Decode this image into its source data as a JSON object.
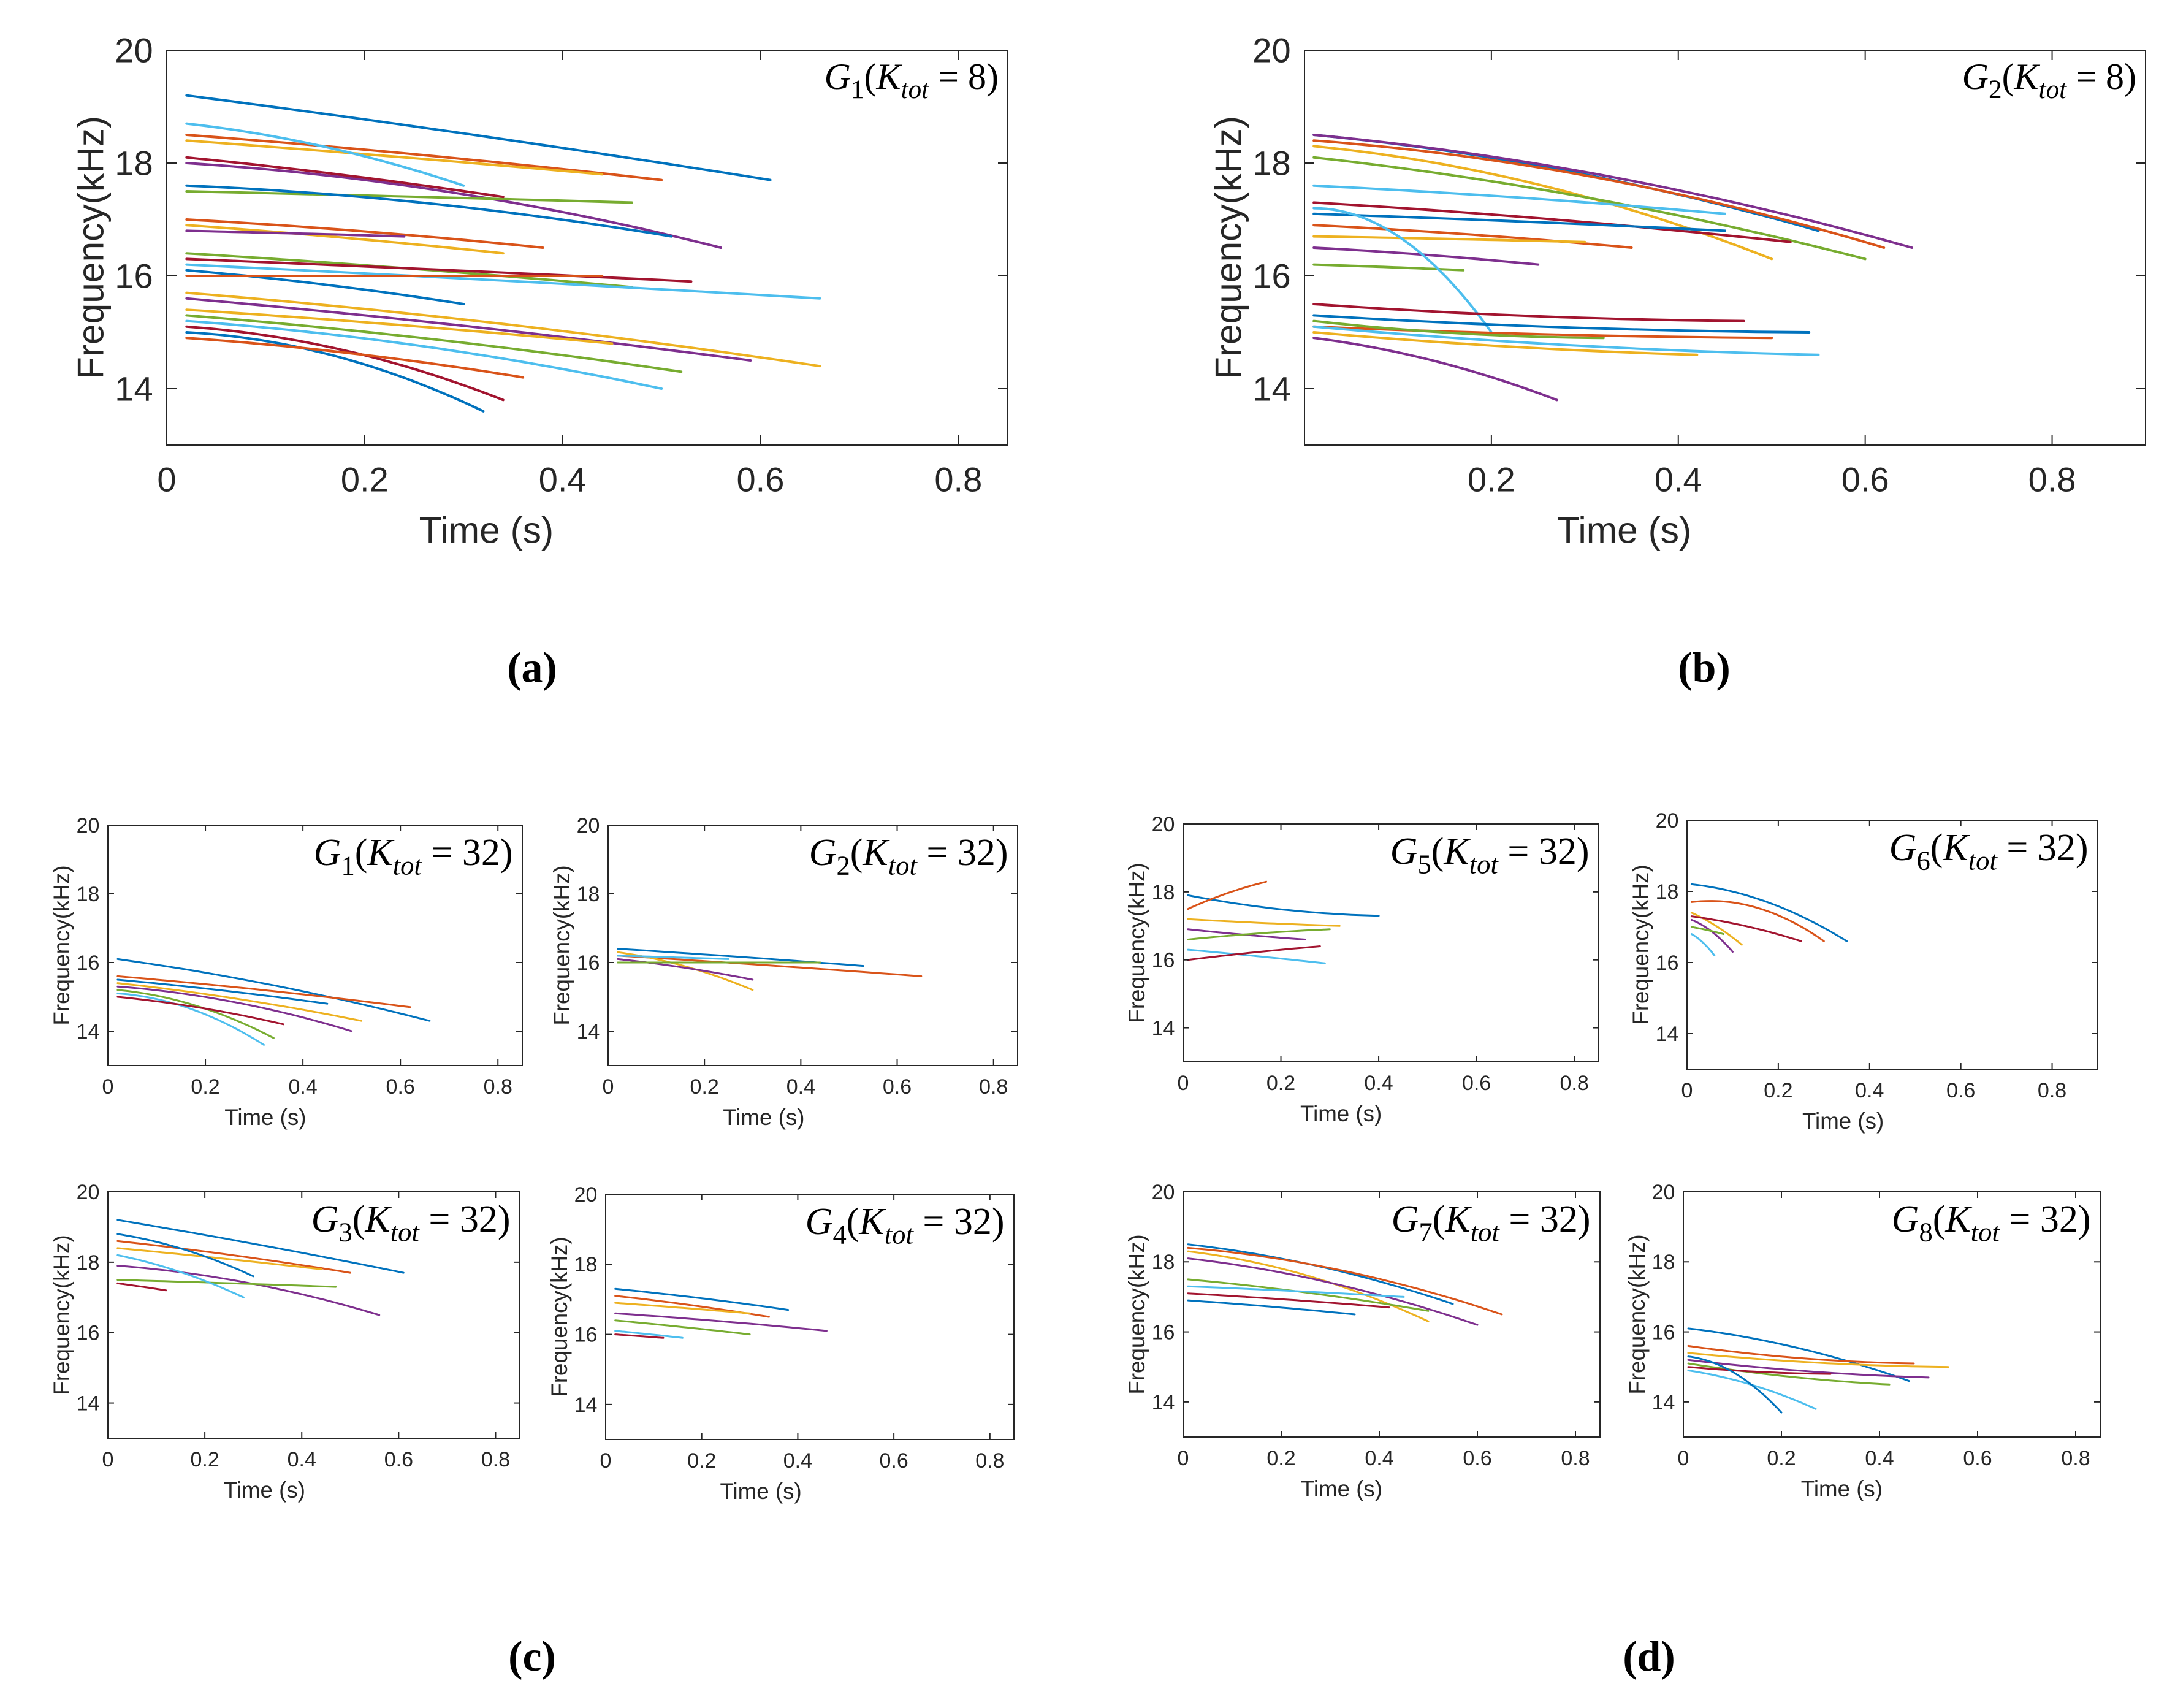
{
  "figure": {
    "panel_labels": [
      "(a)",
      "(b)",
      "(c)",
      "(d)"
    ],
    "line_colors": [
      "#0072BD",
      "#D95319",
      "#EDB120",
      "#7E2F8E",
      "#77AC30",
      "#4DBEEE",
      "#A2142F"
    ]
  },
  "chart_data": [
    {
      "id": "a",
      "type": "line",
      "title": "G1(Ktot = 8)",
      "xlabel": "Time (s)",
      "ylabel": "Frequency(kHz)",
      "xlim": [
        0,
        0.85
      ],
      "ylim": [
        13,
        20
      ],
      "xticks": [
        0,
        0.2,
        0.4,
        0.6,
        0.8
      ],
      "xtick_labels": [
        "0",
        "0.2",
        "0.4",
        "0.6",
        "0.8"
      ],
      "yticks": [
        14,
        16,
        18,
        20
      ],
      "ytick_labels": [
        "14",
        "16",
        "18",
        "20"
      ],
      "series": [
        {
          "t0": 0.02,
          "f0": 19.2,
          "t1": 0.61,
          "f1": 17.7,
          "bend": 0.1
        },
        {
          "t0": 0.02,
          "f0": 18.5,
          "t1": 0.5,
          "f1": 17.7,
          "bend": 0.2
        },
        {
          "t0": 0.02,
          "f0": 18.4,
          "t1": 0.44,
          "f1": 17.8,
          "bend": 0.1
        },
        {
          "t0": 0.02,
          "f0": 18.0,
          "t1": 0.56,
          "f1": 16.5,
          "bend": 0.6
        },
        {
          "t0": 0.02,
          "f0": 17.5,
          "t1": 0.47,
          "f1": 17.3,
          "bend": 0.1
        },
        {
          "t0": 0.02,
          "f0": 18.7,
          "t1": 0.3,
          "f1": 17.6,
          "bend": 0.5
        },
        {
          "t0": 0.02,
          "f0": 18.1,
          "t1": 0.34,
          "f1": 17.4,
          "bend": 0.2
        },
        {
          "t0": 0.02,
          "f0": 17.6,
          "t1": 0.51,
          "f1": 16.7,
          "bend": 0.6
        },
        {
          "t0": 0.02,
          "f0": 17.0,
          "t1": 0.38,
          "f1": 16.5,
          "bend": 0.3
        },
        {
          "t0": 0.02,
          "f0": 16.9,
          "t1": 0.34,
          "f1": 16.4,
          "bend": 0.2
        },
        {
          "t0": 0.02,
          "f0": 16.8,
          "t1": 0.24,
          "f1": 16.7,
          "bend": 0.1
        },
        {
          "t0": 0.02,
          "f0": 16.4,
          "t1": 0.47,
          "f1": 15.8,
          "bend": 0.2
        },
        {
          "t0": 0.02,
          "f0": 16.2,
          "t1": 0.66,
          "f1": 15.6,
          "bend": 0.1
        },
        {
          "t0": 0.02,
          "f0": 16.3,
          "t1": 0.53,
          "f1": 15.9,
          "bend": 0.1
        },
        {
          "t0": 0.02,
          "f0": 16.1,
          "t1": 0.3,
          "f1": 15.5,
          "bend": 0.3
        },
        {
          "t0": 0.02,
          "f0": 16.0,
          "t1": 0.44,
          "f1": 16.0,
          "bend": 0.0
        },
        {
          "t0": 0.02,
          "f0": 15.7,
          "t1": 0.66,
          "f1": 14.4,
          "bend": 0.3
        },
        {
          "t0": 0.02,
          "f0": 15.6,
          "t1": 0.59,
          "f1": 14.5,
          "bend": 0.2
        },
        {
          "t0": 0.02,
          "f0": 15.3,
          "t1": 0.52,
          "f1": 14.3,
          "bend": 0.3
        },
        {
          "t0": 0.02,
          "f0": 15.2,
          "t1": 0.5,
          "f1": 14.0,
          "bend": 0.5
        },
        {
          "t0": 0.02,
          "f0": 15.1,
          "t1": 0.34,
          "f1": 13.8,
          "bend": 0.7
        },
        {
          "t0": 0.02,
          "f0": 15.0,
          "t1": 0.32,
          "f1": 13.6,
          "bend": 0.8
        },
        {
          "t0": 0.02,
          "f0": 14.9,
          "t1": 0.36,
          "f1": 14.2,
          "bend": 0.4
        },
        {
          "t0": 0.02,
          "f0": 15.4,
          "t1": 0.45,
          "f1": 14.8,
          "bend": 0.2
        }
      ]
    },
    {
      "id": "b",
      "type": "line",
      "title": "G2(Ktot = 8)",
      "xlabel": "Time (s)",
      "ylabel": "Frequency(kHz)",
      "xlim": [
        0,
        0.9
      ],
      "ylim": [
        13,
        20
      ],
      "xticks": [
        0.2,
        0.4,
        0.6,
        0.8
      ],
      "xtick_labels": [
        "0.2",
        "0.4",
        "0.6",
        "0.8"
      ],
      "yticks": [
        14,
        16,
        18,
        20
      ],
      "ytick_labels": [
        "14",
        "16",
        "18",
        "20"
      ],
      "series": [
        {
          "t0": 0.01,
          "f0": 18.5,
          "t1": 0.55,
          "f1": 16.8,
          "bend": 0.5
        },
        {
          "t0": 0.01,
          "f0": 18.4,
          "t1": 0.62,
          "f1": 16.5,
          "bend": 0.6
        },
        {
          "t0": 0.01,
          "f0": 18.3,
          "t1": 0.5,
          "f1": 16.3,
          "bend": 0.6
        },
        {
          "t0": 0.01,
          "f0": 18.5,
          "t1": 0.65,
          "f1": 16.5,
          "bend": 0.5
        },
        {
          "t0": 0.01,
          "f0": 18.1,
          "t1": 0.6,
          "f1": 16.3,
          "bend": 0.4
        },
        {
          "t0": 0.01,
          "f0": 17.6,
          "t1": 0.45,
          "f1": 17.1,
          "bend": 0.3
        },
        {
          "t0": 0.01,
          "f0": 17.3,
          "t1": 0.52,
          "f1": 16.6,
          "bend": 0.3
        },
        {
          "t0": 0.01,
          "f0": 17.1,
          "t1": 0.45,
          "f1": 16.8,
          "bend": 0.2
        },
        {
          "t0": 0.01,
          "f0": 16.9,
          "t1": 0.35,
          "f1": 16.5,
          "bend": 0.3
        },
        {
          "t0": 0.01,
          "f0": 16.7,
          "t1": 0.3,
          "f1": 16.6,
          "bend": 0.2
        },
        {
          "t0": 0.01,
          "f0": 16.5,
          "t1": 0.25,
          "f1": 16.2,
          "bend": 0.3
        },
        {
          "t0": 0.01,
          "f0": 16.2,
          "t1": 0.17,
          "f1": 16.1,
          "bend": 0.2
        },
        {
          "t0": 0.01,
          "f0": 17.2,
          "t1": 0.2,
          "f1": 15.0,
          "bend": 1.0
        },
        {
          "t0": 0.01,
          "f0": 15.5,
          "t1": 0.47,
          "f1": 15.2,
          "bend": -0.8
        },
        {
          "t0": 0.01,
          "f0": 15.3,
          "t1": 0.54,
          "f1": 15.0,
          "bend": -0.8
        },
        {
          "t0": 0.01,
          "f0": 15.1,
          "t1": 0.5,
          "f1": 14.9,
          "bend": -0.7
        },
        {
          "t0": 0.01,
          "f0": 15.0,
          "t1": 0.42,
          "f1": 14.6,
          "bend": -0.5
        },
        {
          "t0": 0.01,
          "f0": 14.9,
          "t1": 0.27,
          "f1": 13.8,
          "bend": 0.5
        },
        {
          "t0": 0.01,
          "f0": 15.2,
          "t1": 0.32,
          "f1": 14.9,
          "bend": -0.9
        },
        {
          "t0": 0.01,
          "f0": 15.1,
          "t1": 0.55,
          "f1": 14.6,
          "bend": -0.6
        }
      ]
    },
    {
      "id": "c1",
      "type": "line",
      "title": "G1(Ktot = 32)",
      "xlabel": "Time (s)",
      "ylabel": "Frequency(kHz)",
      "xlim": [
        0,
        0.85
      ],
      "ylim": [
        13,
        20
      ],
      "xticks": [
        0,
        0.2,
        0.4,
        0.6,
        0.8
      ],
      "xtick_labels": [
        "0",
        "0.2",
        "0.4",
        "0.6",
        "0.8"
      ],
      "yticks": [
        14,
        16,
        18,
        20
      ],
      "ytick_labels": [
        "14",
        "16",
        "18",
        "20"
      ],
      "series": [
        {
          "t0": 0.02,
          "f0": 16.1,
          "t1": 0.66,
          "f1": 14.3,
          "bend": 0.3
        },
        {
          "t0": 0.02,
          "f0": 15.6,
          "t1": 0.62,
          "f1": 14.7,
          "bend": 0.2
        },
        {
          "t0": 0.02,
          "f0": 15.4,
          "t1": 0.52,
          "f1": 14.3,
          "bend": 0.3
        },
        {
          "t0": 0.02,
          "f0": 15.3,
          "t1": 0.5,
          "f1": 14.0,
          "bend": 0.6
        },
        {
          "t0": 0.02,
          "f0": 15.2,
          "t1": 0.34,
          "f1": 13.8,
          "bend": 0.7
        },
        {
          "t0": 0.02,
          "f0": 15.1,
          "t1": 0.32,
          "f1": 13.6,
          "bend": 0.8
        },
        {
          "t0": 0.02,
          "f0": 15.0,
          "t1": 0.36,
          "f1": 14.2,
          "bend": 0.4
        },
        {
          "t0": 0.02,
          "f0": 15.5,
          "t1": 0.45,
          "f1": 14.8,
          "bend": 0.2
        }
      ]
    },
    {
      "id": "c2",
      "type": "line",
      "title": "G2(Ktot = 32)",
      "xlabel": "Time (s)",
      "ylabel": "Frequency(kHz)",
      "xlim": [
        0,
        0.85
      ],
      "ylim": [
        13,
        20
      ],
      "xticks": [
        0,
        0.2,
        0.4,
        0.6,
        0.8
      ],
      "xtick_labels": [
        "0",
        "0.2",
        "0.4",
        "0.6",
        "0.8"
      ],
      "yticks": [
        14,
        16,
        18,
        20
      ],
      "ytick_labels": [
        "14",
        "16",
        "18",
        "20"
      ],
      "series": [
        {
          "t0": 0.02,
          "f0": 16.4,
          "t1": 0.53,
          "f1": 15.9,
          "bend": 0.1
        },
        {
          "t0": 0.02,
          "f0": 16.2,
          "t1": 0.65,
          "f1": 15.6,
          "bend": 0.1
        },
        {
          "t0": 0.02,
          "f0": 16.3,
          "t1": 0.3,
          "f1": 15.2,
          "bend": 0.5
        },
        {
          "t0": 0.02,
          "f0": 16.1,
          "t1": 0.3,
          "f1": 15.5,
          "bend": 0.3
        },
        {
          "t0": 0.02,
          "f0": 16.0,
          "t1": 0.44,
          "f1": 16.0,
          "bend": 0.0
        },
        {
          "t0": 0.02,
          "f0": 16.2,
          "t1": 0.25,
          "f1": 16.1,
          "bend": 0.1
        }
      ]
    },
    {
      "id": "c3",
      "type": "line",
      "title": "G3(Ktot = 32)",
      "xlabel": "Time (s)",
      "ylabel": "Frequency(kHz)",
      "xlim": [
        0,
        0.85
      ],
      "ylim": [
        13,
        20
      ],
      "xticks": [
        0,
        0.2,
        0.4,
        0.6,
        0.8
      ],
      "xtick_labels": [
        "0",
        "0.2",
        "0.4",
        "0.6",
        "0.8"
      ],
      "yticks": [
        14,
        16,
        18,
        20
      ],
      "ytick_labels": [
        "14",
        "16",
        "18",
        "20"
      ],
      "series": [
        {
          "t0": 0.02,
          "f0": 19.2,
          "t1": 0.61,
          "f1": 17.7,
          "bend": 0.1
        },
        {
          "t0": 0.02,
          "f0": 18.6,
          "t1": 0.5,
          "f1": 17.7,
          "bend": 0.2
        },
        {
          "t0": 0.02,
          "f0": 18.4,
          "t1": 0.44,
          "f1": 17.8,
          "bend": 0.1
        },
        {
          "t0": 0.02,
          "f0": 17.9,
          "t1": 0.56,
          "f1": 16.5,
          "bend": 0.6
        },
        {
          "t0": 0.02,
          "f0": 17.5,
          "t1": 0.47,
          "f1": 17.3,
          "bend": 0.1
        },
        {
          "t0": 0.02,
          "f0": 18.2,
          "t1": 0.28,
          "f1": 17.0,
          "bend": 0.4
        },
        {
          "t0": 0.02,
          "f0": 17.4,
          "t1": 0.12,
          "f1": 17.2,
          "bend": 0.1
        },
        {
          "t0": 0.02,
          "f0": 18.8,
          "t1": 0.3,
          "f1": 17.6,
          "bend": 0.5
        }
      ]
    },
    {
      "id": "c4",
      "type": "line",
      "title": "G4(Ktot = 32)",
      "xlabel": "Time (s)",
      "ylabel": "Frequency(kHz)",
      "xlim": [
        0,
        0.85
      ],
      "ylim": [
        13,
        20
      ],
      "xticks": [
        0,
        0.2,
        0.4,
        0.6,
        0.8
      ],
      "xtick_labels": [
        "0",
        "0.2",
        "0.4",
        "0.6",
        "0.8"
      ],
      "yticks": [
        14,
        16,
        18,
        20
      ],
      "ytick_labels": [
        "14",
        "16",
        "18",
        "20"
      ],
      "series": [
        {
          "t0": 0.02,
          "f0": 17.3,
          "t1": 0.38,
          "f1": 16.7,
          "bend": 0.2
        },
        {
          "t0": 0.02,
          "f0": 17.1,
          "t1": 0.34,
          "f1": 16.5,
          "bend": 0.2
        },
        {
          "t0": 0.02,
          "f0": 16.9,
          "t1": 0.3,
          "f1": 16.6,
          "bend": 0.1
        },
        {
          "t0": 0.02,
          "f0": 16.6,
          "t1": 0.46,
          "f1": 16.1,
          "bend": 0.2
        },
        {
          "t0": 0.02,
          "f0": 16.4,
          "t1": 0.3,
          "f1": 16.0,
          "bend": 0.1
        },
        {
          "t0": 0.02,
          "f0": 16.1,
          "t1": 0.16,
          "f1": 15.9,
          "bend": 0.1
        },
        {
          "t0": 0.02,
          "f0": 16.0,
          "t1": 0.12,
          "f1": 15.9,
          "bend": 0.0
        }
      ]
    },
    {
      "id": "d5",
      "type": "line",
      "title": "G5(Ktot = 32)",
      "xlabel": "Time (s)",
      "ylabel": "Frequency(kHz)",
      "xlim": [
        0,
        0.85
      ],
      "ylim": [
        13,
        20
      ],
      "xticks": [
        0,
        0.2,
        0.4,
        0.6,
        0.8
      ],
      "xtick_labels": [
        "0",
        "0.2",
        "0.4",
        "0.6",
        "0.8"
      ],
      "yticks": [
        14,
        16,
        18,
        20
      ],
      "ytick_labels": [
        "14",
        "16",
        "18",
        "20"
      ],
      "series": [
        {
          "t0": 0.01,
          "f0": 17.9,
          "t1": 0.4,
          "f1": 17.3,
          "bend": -0.8
        },
        {
          "t0": 0.01,
          "f0": 17.5,
          "t1": 0.17,
          "f1": 18.3,
          "bend": -0.3
        },
        {
          "t0": 0.01,
          "f0": 17.2,
          "t1": 0.32,
          "f1": 17.0,
          "bend": -0.3
        },
        {
          "t0": 0.01,
          "f0": 16.9,
          "t1": 0.25,
          "f1": 16.6,
          "bend": -0.2
        },
        {
          "t0": 0.01,
          "f0": 16.6,
          "t1": 0.3,
          "f1": 16.9,
          "bend": -0.4
        },
        {
          "t0": 0.01,
          "f0": 16.3,
          "t1": 0.29,
          "f1": 15.9,
          "bend": 0.1
        },
        {
          "t0": 0.01,
          "f0": 16.0,
          "t1": 0.28,
          "f1": 16.4,
          "bend": -0.2
        }
      ]
    },
    {
      "id": "d6",
      "type": "line",
      "title": "G6(Ktot = 32)",
      "xlabel": "Time (s)",
      "ylabel": "Frequency(kHz)",
      "xlim": [
        0,
        0.9
      ],
      "ylim": [
        13,
        20
      ],
      "xticks": [
        0,
        0.2,
        0.4,
        0.6,
        0.8
      ],
      "xtick_labels": [
        "0",
        "0.2",
        "0.4",
        "0.6",
        "0.8"
      ],
      "yticks": [
        14,
        16,
        18,
        20
      ],
      "ytick_labels": [
        "14",
        "16",
        "18",
        "20"
      ],
      "series": [
        {
          "t0": 0.01,
          "f0": 18.2,
          "t1": 0.35,
          "f1": 16.6,
          "bend": 0.7
        },
        {
          "t0": 0.01,
          "f0": 17.7,
          "t1": 0.3,
          "f1": 16.6,
          "bend": 1.4
        },
        {
          "t0": 0.01,
          "f0": 17.4,
          "t1": 0.12,
          "f1": 16.5,
          "bend": 0.3
        },
        {
          "t0": 0.01,
          "f0": 17.2,
          "t1": 0.1,
          "f1": 16.3,
          "bend": 0.5
        },
        {
          "t0": 0.01,
          "f0": 17.0,
          "t1": 0.08,
          "f1": 16.8,
          "bend": 0.2
        },
        {
          "t0": 0.01,
          "f0": 16.8,
          "t1": 0.06,
          "f1": 16.2,
          "bend": 0.4
        },
        {
          "t0": 0.01,
          "f0": 17.3,
          "t1": 0.25,
          "f1": 16.6,
          "bend": 0.4
        }
      ]
    },
    {
      "id": "d7",
      "type": "line",
      "title": "G7(Ktot = 32)",
      "xlabel": "Time (s)",
      "ylabel": "Frequency(kHz)",
      "xlim": [
        0,
        0.85
      ],
      "ylim": [
        13,
        20
      ],
      "xticks": [
        0,
        0.2,
        0.4,
        0.6,
        0.8
      ],
      "xtick_labels": [
        "0",
        "0.2",
        "0.4",
        "0.6",
        "0.8"
      ],
      "yticks": [
        14,
        16,
        18,
        20
      ],
      "ytick_labels": [
        "14",
        "16",
        "18",
        "20"
      ],
      "series": [
        {
          "t0": 0.01,
          "f0": 18.5,
          "t1": 0.55,
          "f1": 16.8,
          "bend": 0.5
        },
        {
          "t0": 0.01,
          "f0": 18.4,
          "t1": 0.65,
          "f1": 16.5,
          "bend": 0.6
        },
        {
          "t0": 0.01,
          "f0": 18.3,
          "t1": 0.5,
          "f1": 16.3,
          "bend": 0.6
        },
        {
          "t0": 0.01,
          "f0": 18.1,
          "t1": 0.6,
          "f1": 16.2,
          "bend": 0.5
        },
        {
          "t0": 0.01,
          "f0": 17.5,
          "t1": 0.5,
          "f1": 16.6,
          "bend": 0.3
        },
        {
          "t0": 0.01,
          "f0": 17.3,
          "t1": 0.45,
          "f1": 17.0,
          "bend": 0.2
        },
        {
          "t0": 0.01,
          "f0": 17.1,
          "t1": 0.42,
          "f1": 16.7,
          "bend": 0.2
        },
        {
          "t0": 0.01,
          "f0": 16.9,
          "t1": 0.35,
          "f1": 16.5,
          "bend": 0.2
        }
      ]
    },
    {
      "id": "d8",
      "type": "line",
      "title": "G8(Ktot = 32)",
      "xlabel": "Time (s)",
      "ylabel": "Frequency(kHz)",
      "xlim": [
        0,
        0.85
      ],
      "ylim": [
        13,
        20
      ],
      "xticks": [
        0,
        0.2,
        0.4,
        0.6,
        0.8
      ],
      "xtick_labels": [
        "0",
        "0.2",
        "0.4",
        "0.6",
        "0.8"
      ],
      "yticks": [
        14,
        16,
        18,
        20
      ],
      "ytick_labels": [
        "14",
        "16",
        "18",
        "20"
      ],
      "series": [
        {
          "t0": 0.01,
          "f0": 16.1,
          "t1": 0.46,
          "f1": 14.6,
          "bend": 0.5
        },
        {
          "t0": 0.01,
          "f0": 15.6,
          "t1": 0.47,
          "f1": 15.1,
          "bend": -0.8
        },
        {
          "t0": 0.01,
          "f0": 15.4,
          "t1": 0.54,
          "f1": 15.0,
          "bend": -0.8
        },
        {
          "t0": 0.01,
          "f0": 15.2,
          "t1": 0.5,
          "f1": 14.7,
          "bend": -0.6
        },
        {
          "t0": 0.01,
          "f0": 15.1,
          "t1": 0.42,
          "f1": 14.5,
          "bend": -0.5
        },
        {
          "t0": 0.01,
          "f0": 14.9,
          "t1": 0.27,
          "f1": 13.8,
          "bend": 0.5
        },
        {
          "t0": 0.01,
          "f0": 15.0,
          "t1": 0.3,
          "f1": 14.8,
          "bend": -0.8
        },
        {
          "t0": 0.01,
          "f0": 15.3,
          "t1": 0.2,
          "f1": 13.7,
          "bend": 0.8
        }
      ]
    }
  ]
}
